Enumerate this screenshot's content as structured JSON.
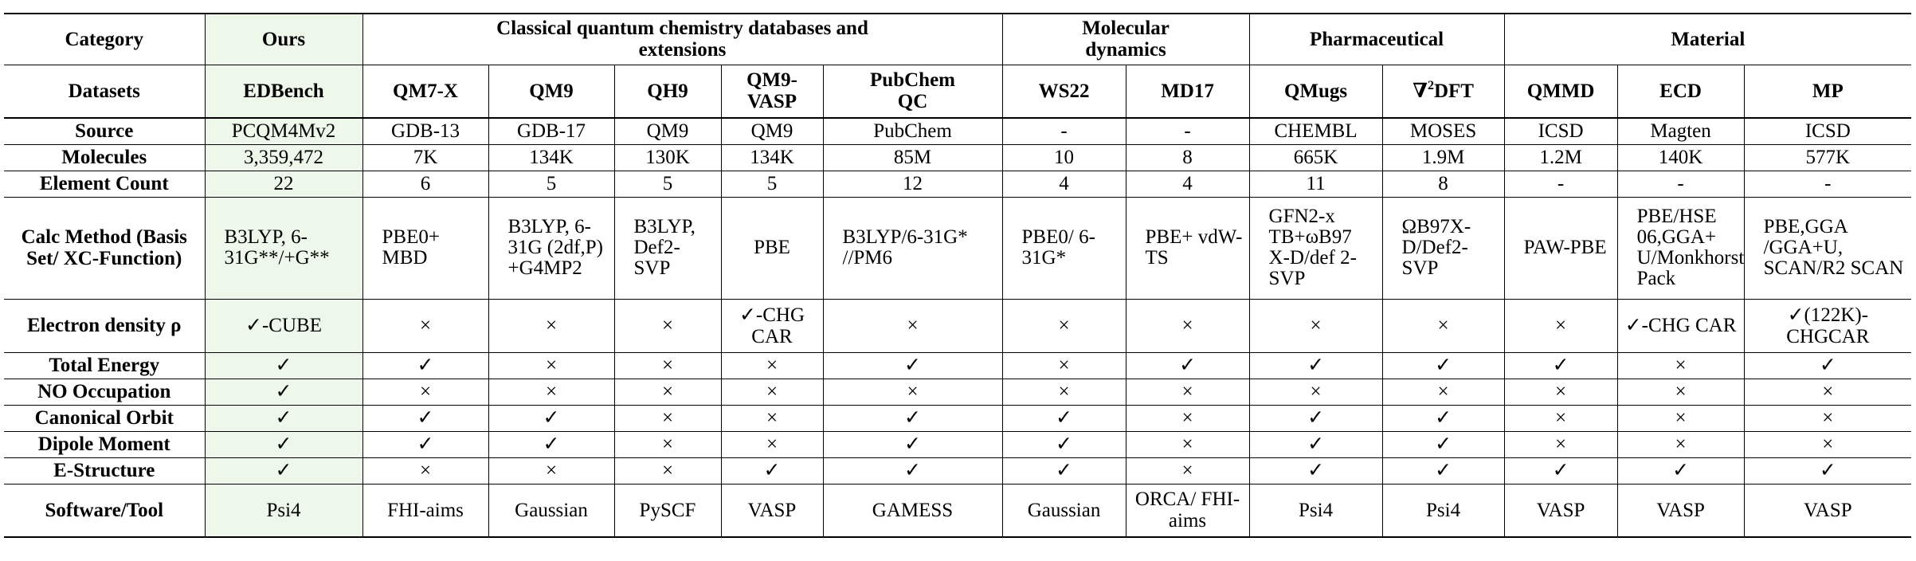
{
  "groups": {
    "category": "Category",
    "ours": "Ours",
    "classical": "Classical quantum chemistry databases and extensions",
    "molecular_dynamics": "Molecular dynamics",
    "pharmaceutical": "Pharmaceutical",
    "material": "Material"
  },
  "datasets_label": "Datasets",
  "datasets": [
    "EDBench",
    "QM7-X",
    "QM9",
    "QH9",
    "QM9-VASP",
    "PubChem QC",
    "WS22",
    "MD17",
    "QMugs",
    "∇²DFT",
    "QMMD",
    "ECD",
    "MP"
  ],
  "rows": [
    {
      "label": "Source",
      "cells": [
        "PCQM4Mv2",
        "GDB-13",
        "GDB-17",
        "QM9",
        "QM9",
        "PubChem",
        "-",
        "-",
        "CHEMBL",
        "MOSES",
        "ICSD",
        "Magten",
        "ICSD"
      ]
    },
    {
      "label": "Molecules",
      "cells": [
        "3,359,472",
        "7K",
        "134K",
        "130K",
        "134K",
        "85M",
        "10",
        "8",
        "665K",
        "1.9M",
        "1.2M",
        "140K",
        "577K"
      ]
    },
    {
      "label": "Element Count",
      "cells": [
        "22",
        "6",
        "5",
        "5",
        "5",
        "12",
        "4",
        "4",
        "11",
        "8",
        "-",
        "-",
        "-"
      ]
    },
    {
      "label": "Calc Method (Basis Set/ XC-Function)",
      "cells": [
        "B3LYP, 6-31G**/+G**",
        "PBE0+ MBD",
        "B3LYP, 6-31G (2df,P) +G4MP2",
        "B3LYP, Def2-SVP",
        "PBE",
        "B3LYP/6-31G* //PM6",
        "PBE0/ 6-31G*",
        "PBE+ vdW-TS",
        "GFN2-x TB+ωB97 X-D/def 2-SVP",
        "ΩB97X-D/Def2-SVP",
        "PAW-PBE",
        "PBE/HSE 06,GGA+ U/Monkhorst-Pack",
        "PBE,GGA /GGA+U, SCAN/R2 SCAN"
      ]
    },
    {
      "label": "Electron density ρ",
      "cells": [
        "✓-CUBE",
        "×",
        "×",
        "×",
        "✓-CHG CAR",
        "×",
        "×",
        "×",
        "×",
        "×",
        "×",
        "✓-CHG CAR",
        "✓(122K)-CHGCAR"
      ]
    },
    {
      "label": "Total Energy",
      "cells": [
        "✓",
        "✓",
        "×",
        "×",
        "×",
        "✓",
        "×",
        "✓",
        "✓",
        "✓",
        "✓",
        "×",
        "✓"
      ]
    },
    {
      "label": "NO Occupation",
      "cells": [
        "✓",
        "×",
        "×",
        "×",
        "×",
        "×",
        "×",
        "×",
        "×",
        "×",
        "×",
        "×",
        "×"
      ]
    },
    {
      "label": "Canonical Orbit",
      "cells": [
        "✓",
        "✓",
        "✓",
        "×",
        "×",
        "✓",
        "✓",
        "×",
        "✓",
        "✓",
        "×",
        "×",
        "×"
      ]
    },
    {
      "label": "Dipole Moment",
      "cells": [
        "✓",
        "✓",
        "✓",
        "×",
        "×",
        "✓",
        "✓",
        "×",
        "✓",
        "✓",
        "×",
        "×",
        "×"
      ]
    },
    {
      "label": "E-Structure",
      "cells": [
        "✓",
        "×",
        "×",
        "×",
        "✓",
        "✓",
        "✓",
        "×",
        "✓",
        "✓",
        "✓",
        "✓",
        "✓"
      ]
    },
    {
      "label": "Software/Tool",
      "cells": [
        "Psi4",
        "FHI-aims",
        "Gaussian",
        "PySCF",
        "VASP",
        "GAMESS",
        "Gaussian",
        "ORCA/ FHI-aims",
        "Psi4",
        "Psi4",
        "VASP",
        "VASP",
        "VASP"
      ]
    }
  ],
  "highlight_color": "#eef8ea"
}
